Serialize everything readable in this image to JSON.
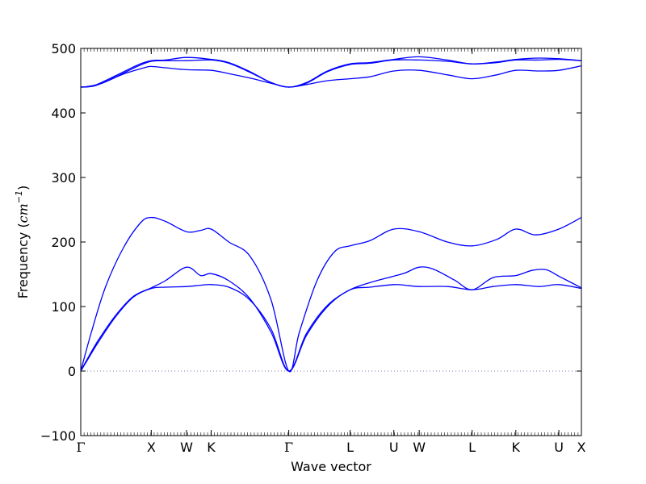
{
  "chart_data": {
    "type": "line",
    "title": "",
    "xlabel": "Wave vector",
    "ylabel": {
      "main": "Frequency (",
      "unit": "cm",
      "exp": "−1",
      "close": ")"
    },
    "ylim": [
      -100,
      500
    ],
    "yticks": [
      -100,
      0,
      100,
      200,
      300,
      400,
      500
    ],
    "xlim": [
      0,
      7.1
    ],
    "grid": false,
    "legend": "none",
    "line_color": "#0000ff",
    "zero_line_color": "#7777aa",
    "high_symmetry_points": [
      {
        "label": "Γ",
        "x": 0.0
      },
      {
        "label": "X",
        "x": 1.0
      },
      {
        "label": "W",
        "x": 1.5
      },
      {
        "label": "K",
        "x": 1.85
      },
      {
        "label": "Γ",
        "x": 2.95
      },
      {
        "label": "L",
        "x": 3.82
      },
      {
        "label": "U",
        "x": 4.44
      },
      {
        "label": "W",
        "x": 4.8
      },
      {
        "label": "L",
        "x": 5.55
      },
      {
        "label": "K",
        "x": 6.17
      },
      {
        "label": "U",
        "x": 6.78
      },
      {
        "label": "X",
        "x": 7.1
      }
    ],
    "series": [
      {
        "x": [
          0,
          0.1,
          0.25,
          0.5,
          0.75,
          1.0,
          1.2,
          1.5,
          1.7,
          1.85,
          2.1,
          2.4,
          2.7,
          2.95,
          3.2,
          3.5,
          3.82,
          4.1,
          4.44,
          4.6,
          4.8,
          5.2,
          5.55,
          5.85,
          6.17,
          6.5,
          6.78,
          7.1
        ],
        "y": [
          0,
          18,
          45,
          85,
          115,
          128,
          130,
          131,
          133,
          134,
          130,
          110,
          65,
          0,
          55,
          100,
          126,
          130,
          134,
          133,
          131,
          131,
          126,
          131,
          134,
          131,
          134,
          128
        ]
      },
      {
        "x": [
          0,
          0.1,
          0.25,
          0.5,
          0.75,
          1.0,
          1.2,
          1.5,
          1.7,
          1.85,
          2.1,
          2.4,
          2.7,
          2.95,
          3.2,
          3.5,
          3.82,
          4.1,
          4.44,
          4.6,
          4.8,
          5.0,
          5.3,
          5.55,
          5.85,
          6.17,
          6.4,
          6.6,
          6.78,
          7.1
        ],
        "y": [
          0,
          20,
          48,
          87,
          116,
          129,
          140,
          161,
          148,
          151,
          140,
          112,
          60,
          0,
          58,
          102,
          126,
          137,
          147,
          152,
          161,
          158,
          141,
          126,
          145,
          148,
          156,
          157,
          147,
          129
        ]
      },
      {
        "x": [
          0,
          0.15,
          0.35,
          0.6,
          0.85,
          1.0,
          1.2,
          1.5,
          1.7,
          1.85,
          2.1,
          2.4,
          2.7,
          2.95,
          3.1,
          3.35,
          3.6,
          3.82,
          4.1,
          4.44,
          4.8,
          5.2,
          5.55,
          5.9,
          6.17,
          6.45,
          6.78,
          7.1
        ],
        "y": [
          0,
          60,
          130,
          190,
          230,
          238,
          232,
          216,
          218,
          220,
          200,
          178,
          110,
          0,
          60,
          140,
          185,
          194,
          202,
          220,
          216,
          200,
          194,
          204,
          220,
          211,
          220,
          238
        ]
      },
      {
        "x": [
          0,
          0.1,
          0.3,
          0.6,
          0.9,
          1.0,
          1.2,
          1.5,
          1.85,
          2.1,
          2.4,
          2.7,
          2.95,
          3.2,
          3.5,
          3.82,
          4.1,
          4.44,
          4.8,
          5.2,
          5.55,
          5.9,
          6.17,
          6.5,
          6.78,
          7.1
        ],
        "y": [
          440,
          441,
          446,
          460,
          470,
          472,
          470,
          467,
          466,
          461,
          454,
          446,
          440,
          444,
          450,
          453,
          456,
          465,
          466,
          459,
          453,
          459,
          466,
          465,
          466,
          473
        ]
      },
      {
        "x": [
          0,
          0.2,
          0.5,
          0.8,
          1.0,
          1.2,
          1.5,
          1.85,
          2.1,
          2.4,
          2.7,
          2.95,
          3.2,
          3.5,
          3.82,
          4.1,
          4.44,
          4.8,
          5.2,
          5.55,
          5.9,
          6.17,
          6.5,
          6.78,
          7.1
        ],
        "y": [
          440,
          443,
          458,
          474,
          481,
          482,
          486,
          483,
          478,
          464,
          447,
          440,
          447,
          465,
          476,
          478,
          483,
          487,
          482,
          476,
          479,
          483,
          485,
          484,
          481
        ]
      },
      {
        "x": [
          0,
          0.2,
          0.5,
          0.8,
          1.0,
          1.2,
          1.5,
          1.85,
          2.1,
          2.4,
          2.7,
          2.95,
          3.2,
          3.5,
          3.82,
          4.1,
          4.44,
          4.8,
          5.2,
          5.55,
          5.9,
          6.17,
          6.5,
          6.78,
          7.1
        ],
        "y": [
          440,
          442,
          456,
          472,
          480,
          481,
          481,
          482,
          477,
          463,
          447,
          440,
          446,
          464,
          475,
          477,
          482,
          482,
          480,
          476,
          478,
          482,
          482,
          483,
          481
        ]
      }
    ]
  }
}
